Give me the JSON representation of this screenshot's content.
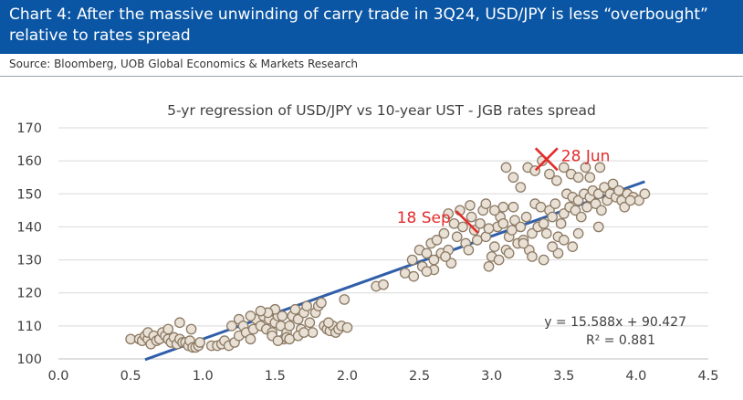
{
  "header": {
    "title": "Chart 4: After the massive unwinding of carry trade in 3Q24, USD/JPY is less “overbought” relative to rates spread",
    "source": "Source: Bloomberg, UOB Global Economics & Markets Research"
  },
  "colors": {
    "header_bg": "#0b56a4",
    "marker_fill": "#e9e1d6",
    "marker_stroke": "#8c7a64",
    "trend_line": "#2f5eaa",
    "annotation": "#e32b2b",
    "gridline": "#d9d9d9"
  },
  "chart_data": {
    "type": "scatter",
    "title": "5-yr regression of USD/JPY vs 10-year UST - JGB rates spread",
    "xlabel": "",
    "ylabel": "",
    "xlim": [
      0.0,
      4.5
    ],
    "ylim": [
      100,
      170
    ],
    "x_ticks": [
      "0.0",
      "0.5",
      "1.0",
      "1.5",
      "2.0",
      "2.5",
      "3.0",
      "3.5",
      "4.0",
      "4.5"
    ],
    "y_ticks": [
      "100",
      "110",
      "120",
      "130",
      "140",
      "150",
      "160",
      "170"
    ],
    "grid": "horizontal",
    "regression": {
      "slope": 15.588,
      "intercept": 90.427,
      "x_range": [
        0.6,
        4.06
      ]
    },
    "equation": "y = 15.588x + 90.427",
    "r_squared": "R² = 0.881",
    "annotations": [
      {
        "label": "28 Jun",
        "x": 3.38,
        "y": 160.5
      },
      {
        "label": "18 Sep",
        "x": 2.83,
        "y": 141.5
      }
    ],
    "points": [
      [
        0.5,
        106
      ],
      [
        0.56,
        106
      ],
      [
        0.58,
        105.5
      ],
      [
        0.6,
        107
      ],
      [
        0.62,
        106
      ],
      [
        0.62,
        108
      ],
      [
        0.64,
        104.5
      ],
      [
        0.66,
        107
      ],
      [
        0.68,
        105.5
      ],
      [
        0.7,
        106
      ],
      [
        0.72,
        108
      ],
      [
        0.74,
        107
      ],
      [
        0.76,
        106
      ],
      [
        0.78,
        105
      ],
      [
        0.8,
        106.5
      ],
      [
        0.82,
        104.5
      ],
      [
        0.84,
        106
      ],
      [
        0.86,
        105
      ],
      [
        0.88,
        105
      ],
      [
        0.9,
        104
      ],
      [
        0.91,
        105.5
      ],
      [
        0.93,
        103.5
      ],
      [
        0.95,
        103.5
      ],
      [
        0.97,
        104
      ],
      [
        0.98,
        105
      ],
      [
        0.76,
        109
      ],
      [
        0.84,
        111
      ],
      [
        0.92,
        109
      ],
      [
        1.06,
        104
      ],
      [
        1.1,
        104
      ],
      [
        1.13,
        104.5
      ],
      [
        1.15,
        105.5
      ],
      [
        1.18,
        104
      ],
      [
        1.22,
        105
      ],
      [
        1.25,
        107
      ],
      [
        1.2,
        110
      ],
      [
        1.25,
        112
      ],
      [
        1.28,
        110
      ],
      [
        1.3,
        108
      ],
      [
        1.33,
        106
      ],
      [
        1.35,
        109
      ],
      [
        1.37,
        112
      ],
      [
        1.4,
        110
      ],
      [
        1.42,
        113
      ],
      [
        1.44,
        109
      ],
      [
        1.46,
        112
      ],
      [
        1.48,
        108
      ],
      [
        1.5,
        111
      ],
      [
        1.52,
        113
      ],
      [
        1.54,
        110
      ],
      [
        1.56,
        106
      ],
      [
        1.58,
        108
      ],
      [
        1.6,
        110
      ],
      [
        1.62,
        113
      ],
      [
        1.64,
        115
      ],
      [
        1.66,
        112
      ],
      [
        1.68,
        109
      ],
      [
        1.7,
        114
      ],
      [
        1.72,
        116
      ],
      [
        1.74,
        111
      ],
      [
        1.5,
        115
      ],
      [
        1.55,
        113
      ],
      [
        1.48,
        107
      ],
      [
        1.52,
        105.5
      ],
      [
        1.58,
        106.5
      ],
      [
        1.45,
        114
      ],
      [
        1.6,
        106
      ],
      [
        1.66,
        107
      ],
      [
        1.4,
        114.5
      ],
      [
        1.33,
        113
      ],
      [
        1.76,
        108
      ],
      [
        1.78,
        114
      ],
      [
        1.8,
        116
      ],
      [
        1.82,
        117
      ],
      [
        1.84,
        110
      ],
      [
        1.86,
        109
      ],
      [
        1.88,
        108.5
      ],
      [
        1.9,
        110
      ],
      [
        1.92,
        108
      ],
      [
        1.94,
        109
      ],
      [
        1.96,
        110
      ],
      [
        1.98,
        118
      ],
      [
        2.0,
        109.5
      ],
      [
        1.87,
        111
      ],
      [
        1.7,
        108
      ],
      [
        2.2,
        122
      ],
      [
        2.25,
        122.5
      ],
      [
        2.4,
        126
      ],
      [
        2.45,
        130
      ],
      [
        2.5,
        133
      ],
      [
        2.52,
        128
      ],
      [
        2.55,
        132
      ],
      [
        2.58,
        135
      ],
      [
        2.6,
        130
      ],
      [
        2.62,
        136
      ],
      [
        2.65,
        132
      ],
      [
        2.67,
        138
      ],
      [
        2.7,
        133
      ],
      [
        2.72,
        129
      ],
      [
        2.74,
        141
      ],
      [
        2.76,
        137
      ],
      [
        2.78,
        145
      ],
      [
        2.8,
        140
      ],
      [
        2.82,
        135
      ],
      [
        2.84,
        133
      ],
      [
        2.86,
        143
      ],
      [
        2.88,
        139
      ],
      [
        2.9,
        136
      ],
      [
        2.92,
        141
      ],
      [
        2.94,
        145
      ],
      [
        2.96,
        137
      ],
      [
        2.98,
        128
      ],
      [
        3.0,
        131
      ],
      [
        3.02,
        134
      ],
      [
        3.04,
        140
      ],
      [
        3.06,
        143
      ],
      [
        3.08,
        146
      ],
      [
        3.1,
        133
      ],
      [
        3.12,
        137
      ],
      [
        3.14,
        139
      ],
      [
        3.16,
        142
      ],
      [
        3.18,
        135
      ],
      [
        3.2,
        140
      ],
      [
        3.22,
        136
      ],
      [
        3.24,
        143
      ],
      [
        3.26,
        133
      ],
      [
        3.28,
        138
      ],
      [
        3.3,
        147
      ],
      [
        3.32,
        140
      ],
      [
        3.34,
        146
      ],
      [
        3.36,
        141
      ],
      [
        3.38,
        138
      ],
      [
        3.4,
        145
      ],
      [
        3.42,
        143
      ],
      [
        3.44,
        147
      ],
      [
        3.46,
        137
      ],
      [
        3.48,
        141
      ],
      [
        3.5,
        144
      ],
      [
        3.52,
        150
      ],
      [
        3.54,
        146
      ],
      [
        3.56,
        149
      ],
      [
        3.58,
        145
      ],
      [
        3.6,
        148
      ],
      [
        3.62,
        143
      ],
      [
        3.64,
        150
      ],
      [
        3.66,
        146
      ],
      [
        3.68,
        149
      ],
      [
        3.7,
        151
      ],
      [
        3.72,
        147
      ],
      [
        3.74,
        150
      ],
      [
        3.76,
        145
      ],
      [
        3.78,
        152
      ],
      [
        3.8,
        148
      ],
      [
        3.82,
        150
      ],
      [
        3.84,
        153
      ],
      [
        3.86,
        149
      ],
      [
        3.88,
        151
      ],
      [
        3.9,
        148
      ],
      [
        3.94,
        150
      ],
      [
        3.98,
        149
      ],
      [
        4.02,
        148
      ],
      [
        4.06,
        150
      ],
      [
        3.92,
        146
      ],
      [
        3.96,
        148
      ],
      [
        3.1,
        158
      ],
      [
        3.15,
        155
      ],
      [
        3.2,
        152
      ],
      [
        3.25,
        158
      ],
      [
        3.3,
        157
      ],
      [
        3.35,
        160
      ],
      [
        3.4,
        156
      ],
      [
        3.45,
        154
      ],
      [
        3.5,
        158
      ],
      [
        3.55,
        156
      ],
      [
        3.6,
        155
      ],
      [
        3.65,
        158
      ],
      [
        3.75,
        158
      ],
      [
        3.68,
        155
      ],
      [
        2.98,
        139.5
      ],
      [
        3.05,
        130
      ],
      [
        3.12,
        132
      ],
      [
        3.22,
        135
      ],
      [
        3.28,
        131
      ],
      [
        3.36,
        130
      ],
      [
        3.46,
        132
      ],
      [
        3.56,
        134
      ],
      [
        3.6,
        138
      ],
      [
        3.74,
        140
      ],
      [
        3.5,
        136
      ],
      [
        3.42,
        134
      ],
      [
        2.68,
        131
      ],
      [
        2.6,
        127
      ],
      [
        2.46,
        125
      ],
      [
        2.55,
        126.5
      ],
      [
        3.15,
        146
      ],
      [
        3.08,
        141
      ],
      [
        2.96,
        147
      ],
      [
        3.02,
        145
      ],
      [
        2.85,
        146.5
      ],
      [
        2.7,
        144
      ]
    ]
  }
}
